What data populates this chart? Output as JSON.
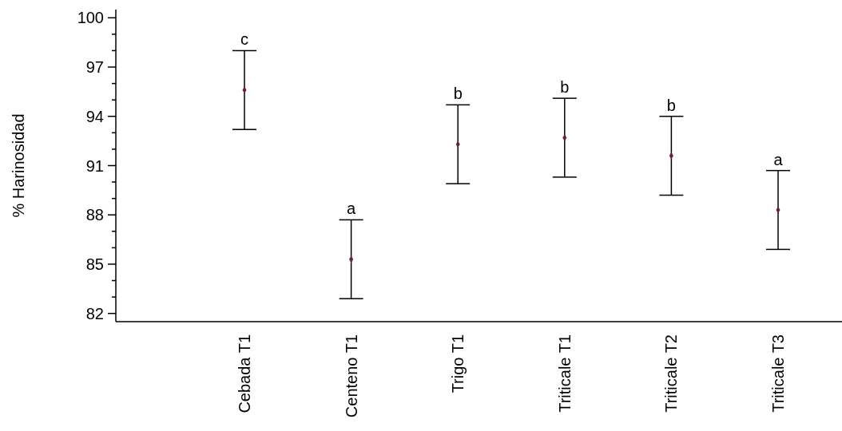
{
  "chart_data": {
    "type": "scatter",
    "ylabel": "% Harinosidad",
    "categories": [
      "Cebada T1",
      "Centeno T1",
      "Trigo T1",
      "Triticale T1",
      "Triticale T2",
      "Triticale T3"
    ],
    "series": [
      {
        "color": "#6b1f3a",
        "values": [
          95.6,
          85.3,
          92.3,
          92.7,
          91.6,
          88.3
        ],
        "errors": [
          2.4,
          2.4,
          2.4,
          2.4,
          2.4,
          2.4
        ]
      }
    ],
    "ylim": [
      81.5,
      100.5
    ],
    "yticks": [
      82,
      {
        "value": 83,
        "label": null
      },
      {
        "value": 84,
        "label": null
      },
      85,
      {
        "value": 86,
        "label": null
      },
      {
        "value": 87,
        "label": null
      },
      88,
      {
        "value": 89,
        "label": null
      },
      {
        "value": 90,
        "label": null
      },
      91,
      {
        "value": 92,
        "label": null
      },
      {
        "value": 93,
        "label": null
      },
      94,
      {
        "value": 95,
        "label": null
      },
      {
        "value": 96,
        "label": null
      },
      97,
      {
        "value": 98,
        "label": null
      },
      {
        "value": 99,
        "label": null
      },
      100
    ],
    "marker": "diamond",
    "grid": false,
    "annotations": [
      {
        "text": "c",
        "x": "Cebada T1",
        "y": 98.0
      },
      {
        "text": "a",
        "x": "Centeno T1",
        "y": 87.7
      },
      {
        "text": "b",
        "x": "Trigo T1",
        "y": 94.7
      },
      {
        "text": "b",
        "x": "Triticale T1",
        "y": 95.1
      },
      {
        "text": "b",
        "x": "Triticale T2",
        "y": 94.0
      },
      {
        "text": "a",
        "x": "Triticale T3",
        "y": 90.7
      }
    ]
  }
}
